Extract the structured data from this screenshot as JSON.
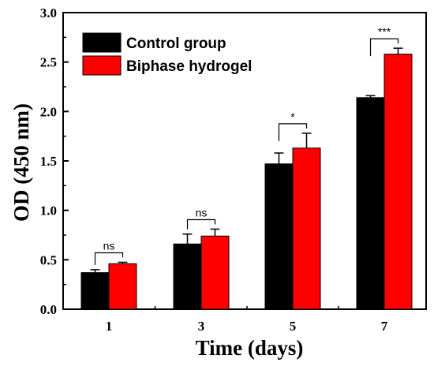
{
  "chart_data": {
    "type": "bar",
    "xlabel": "Time (days)",
    "ylabel": "OD (450 nm)",
    "ylim": [
      0,
      3.0
    ],
    "yticks": [
      "0.0",
      "0.5",
      "1.0",
      "1.5",
      "2.0",
      "2.5",
      "3.0"
    ],
    "categories": [
      "1",
      "3",
      "5",
      "7"
    ],
    "series": [
      {
        "name": "Control group",
        "color": "#000000",
        "values": [
          0.37,
          0.66,
          1.47,
          2.14
        ],
        "errors": [
          0.03,
          0.1,
          0.11,
          0.02
        ]
      },
      {
        "name": "Biphase hydrogel",
        "color": "#ff0000",
        "values": [
          0.46,
          0.74,
          1.63,
          2.58
        ],
        "errors": [
          0.015,
          0.07,
          0.15,
          0.06
        ]
      }
    ],
    "significance": [
      "ns",
      "ns",
      "*",
      "***"
    ],
    "legend_position": "top-left",
    "grid": false
  }
}
